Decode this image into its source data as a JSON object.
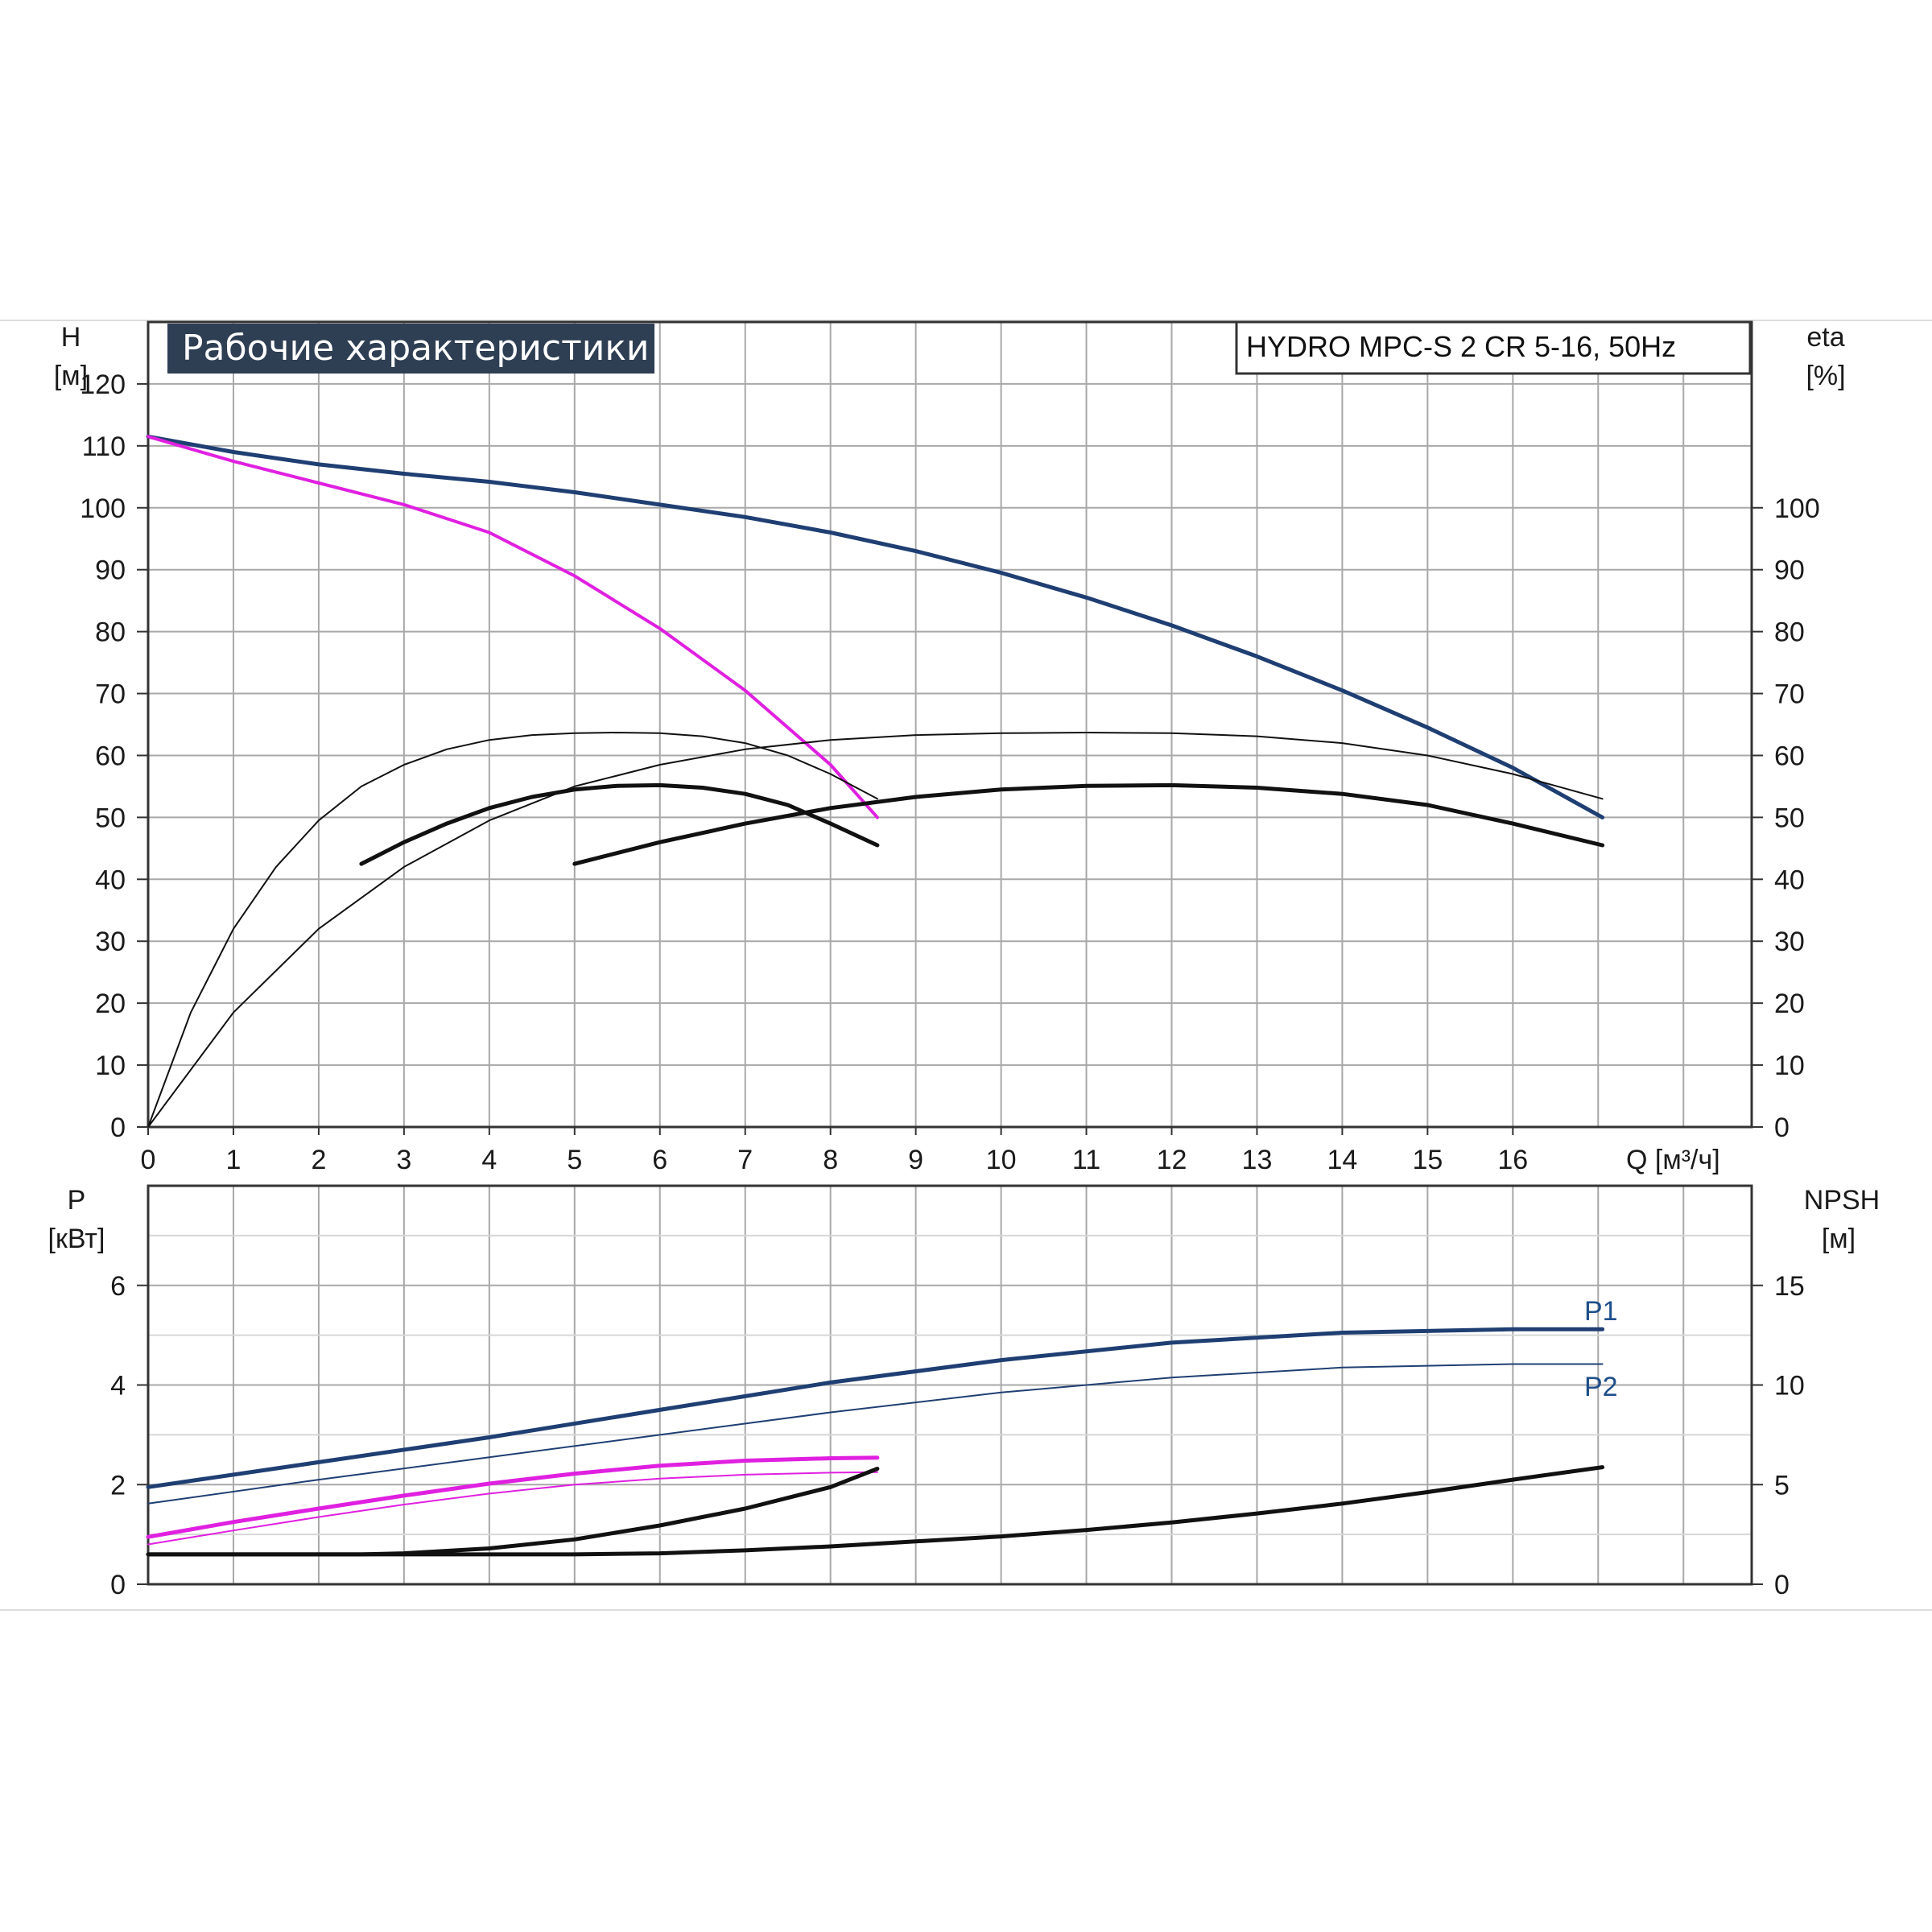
{
  "chart_data": [
    {
      "type": "line",
      "title": "Рабочие характеристики",
      "model": "HYDRO MPC-S 2 CR 5-16, 50Hz",
      "ylabel_left": [
        "H",
        "[м]"
      ],
      "ylabel_right": [
        "eta",
        "[%]"
      ],
      "xlabel": "Q [м³/ч]",
      "xlim": [
        0,
        18.8
      ],
      "ylim": [
        0,
        130
      ],
      "x_ticks": [
        "0",
        "1",
        "2",
        "3",
        "4",
        "5",
        "6",
        "7",
        "8",
        "9",
        "10",
        "11",
        "12",
        "13",
        "14",
        "15",
        "16"
      ],
      "y_ticks_left": [
        "0",
        "10",
        "20",
        "30",
        "40",
        "50",
        "60",
        "70",
        "80",
        "90",
        "100",
        "110",
        "120"
      ],
      "y_ticks_right": [
        "0",
        "10",
        "20",
        "30",
        "40",
        "50",
        "60",
        "70",
        "80",
        "90",
        "100"
      ],
      "grid": true,
      "series": [
        {
          "color": "#1f3f73",
          "width": 5,
          "x": [
            0,
            1,
            2,
            3,
            4,
            5,
            6,
            7,
            8,
            9,
            10,
            11,
            12,
            13,
            14,
            15,
            16,
            17.05
          ],
          "values": [
            111.5,
            109,
            107,
            105.5,
            104.2,
            102.5,
            100.5,
            98.5,
            96,
            93,
            89.5,
            85.5,
            81,
            76,
            70.5,
            64.5,
            58,
            50
          ]
        },
        {
          "color": "#e020e0",
          "width": 4,
          "x": [
            0,
            1,
            2,
            3,
            4,
            5,
            6,
            7,
            8,
            8.55
          ],
          "values": [
            111.5,
            107.5,
            104,
            100.5,
            96,
            89,
            80.5,
            70.5,
            58.5,
            50
          ]
        },
        {
          "color": "#111111",
          "width": 2,
          "x": [
            0,
            0.5,
            1,
            1.5,
            2,
            2.5,
            3,
            3.5,
            4,
            4.5,
            5,
            5.5,
            6,
            6.5,
            7,
            7.5,
            8,
            8.55
          ],
          "values": [
            0,
            18.5,
            32,
            42,
            49.5,
            55,
            58.5,
            61,
            62.5,
            63.3,
            63.6,
            63.7,
            63.6,
            63.1,
            62,
            60,
            57,
            53
          ]
        },
        {
          "color": "#111111",
          "width": 5,
          "x": [
            2.5,
            3,
            3.5,
            4,
            4.5,
            5,
            5.5,
            6,
            6.5,
            7,
            7.5,
            8,
            8.55
          ],
          "values": [
            42.5,
            46,
            49,
            51.5,
            53.3,
            54.5,
            55.1,
            55.2,
            54.8,
            53.8,
            52,
            49,
            45.5
          ]
        },
        {
          "color": "#111111",
          "width": 2,
          "x": [
            0,
            1,
            2,
            3,
            4,
            5,
            6,
            7,
            8,
            9,
            10,
            11,
            12,
            13,
            14,
            15,
            16,
            17.05
          ],
          "values": [
            0,
            18.5,
            32,
            42,
            49.5,
            55,
            58.5,
            61,
            62.5,
            63.3,
            63.6,
            63.7,
            63.6,
            63.1,
            62,
            60,
            57,
            53
          ]
        },
        {
          "color": "#111111",
          "width": 5,
          "x": [
            5,
            6,
            7,
            8,
            9,
            10,
            11,
            12,
            13,
            14,
            15,
            16,
            17.05
          ],
          "values": [
            42.5,
            46,
            49,
            51.5,
            53.3,
            54.5,
            55.1,
            55.2,
            54.8,
            53.8,
            52,
            49,
            45.5
          ]
        }
      ]
    },
    {
      "type": "line",
      "ylabel_left": [
        "P",
        "[кВт]"
      ],
      "ylabel_right": [
        "NPSH",
        "[м]"
      ],
      "xlim": [
        0,
        18.8
      ],
      "ylim": [
        0,
        8
      ],
      "y_ticks_left": [
        "0",
        "2",
        "4",
        "6"
      ],
      "y_ticks_right": [
        "0",
        "5",
        "10",
        "15"
      ],
      "grid": true,
      "series": [
        {
          "name": "P1",
          "color": "#1f3f73",
          "width": 5,
          "x": [
            0,
            2,
            4,
            6,
            8,
            10,
            12,
            14,
            16,
            17.05
          ],
          "values": [
            1.95,
            2.45,
            2.95,
            3.5,
            4.05,
            4.5,
            4.85,
            5.05,
            5.12,
            5.12
          ]
        },
        {
          "name": "P2",
          "color": "#1f3f73",
          "width": 2,
          "x": [
            0,
            2,
            4,
            6,
            8,
            10,
            12,
            14,
            16,
            17.05
          ],
          "values": [
            1.62,
            2.1,
            2.55,
            3.0,
            3.45,
            3.85,
            4.15,
            4.35,
            4.42,
            4.42
          ]
        },
        {
          "color": "#e020e0",
          "width": 5,
          "x": [
            0,
            1,
            2,
            3,
            4,
            5,
            6,
            7,
            8,
            8.55
          ],
          "values": [
            0.95,
            1.25,
            1.52,
            1.78,
            2.02,
            2.22,
            2.38,
            2.48,
            2.53,
            2.54
          ]
        },
        {
          "color": "#e020e0",
          "width": 2,
          "x": [
            0,
            1,
            2,
            3,
            4,
            5,
            6,
            7,
            8,
            8.55
          ],
          "values": [
            0.8,
            1.08,
            1.35,
            1.6,
            1.82,
            2.0,
            2.12,
            2.2,
            2.24,
            2.25
          ]
        },
        {
          "color": "#111111",
          "width": 5,
          "x": [
            0,
            2.5,
            3,
            4,
            5,
            6,
            7,
            8,
            8.55
          ],
          "values": [
            0.6,
            0.6,
            0.62,
            0.72,
            0.9,
            1.18,
            1.52,
            1.95,
            2.32
          ]
        },
        {
          "color": "#111111",
          "width": 5,
          "x": [
            0,
            5,
            6,
            7,
            8,
            9,
            10,
            11,
            12,
            13,
            14,
            15,
            16,
            17.05
          ],
          "values": [
            0.6,
            0.6,
            0.62,
            0.68,
            0.76,
            0.86,
            0.96,
            1.09,
            1.24,
            1.42,
            1.62,
            1.85,
            2.1,
            2.35
          ]
        }
      ]
    }
  ]
}
